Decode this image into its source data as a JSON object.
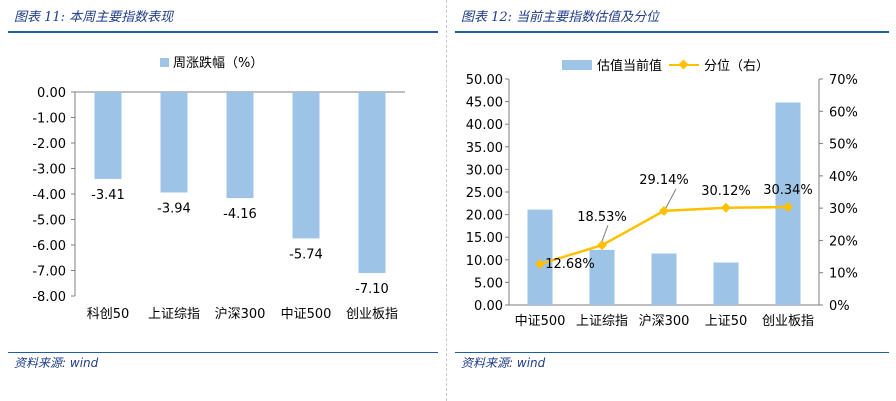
{
  "left": {
    "title": "图表 11:  本周主要指数表现",
    "source_label": "资料来源:",
    "source_value": "wind",
    "chart_data": {
      "type": "bar",
      "series": [
        {
          "name": "周涨跌幅（%）",
          "color": "#9dc3e6",
          "values": [
            -3.41,
            -3.94,
            -4.16,
            -5.74,
            -7.1
          ]
        }
      ],
      "categories": [
        "科创50",
        "上证综指",
        "沪深300",
        "中证500",
        "创业板指"
      ],
      "data_labels": [
        "-3.41",
        "-3.94",
        "-4.16",
        "-5.74",
        "-7.10"
      ],
      "ylim": [
        -8,
        0
      ],
      "yticks": [
        "0.00",
        "-1.00",
        "-2.00",
        "-3.00",
        "-4.00",
        "-5.00",
        "-6.00",
        "-7.00",
        "-8.00"
      ],
      "grid": false,
      "legend": "top"
    }
  },
  "right": {
    "title": "图表 12:  当前主要指数估值及分位",
    "source_label": "资料来源:",
    "source_value": "wind",
    "chart_data": {
      "type": "bar+line",
      "categories": [
        "中证500",
        "上证综指",
        "沪深300",
        "上证50",
        "创业板指"
      ],
      "series": [
        {
          "name": "估值当前值",
          "type": "bar",
          "axis": "left",
          "color": "#9dc3e6",
          "values": [
            21.1,
            12.2,
            11.4,
            9.4,
            44.8
          ]
        },
        {
          "name": "分位（右）",
          "type": "line",
          "axis": "right",
          "color": "#ffc000",
          "values": [
            12.68,
            18.53,
            29.14,
            30.12,
            30.34
          ],
          "labels": [
            "12.68%",
            "18.53%",
            "29.14%",
            "30.12%",
            "30.34%"
          ]
        }
      ],
      "ylim_left": [
        0,
        50
      ],
      "yticks_left": [
        "0.00",
        "5.00",
        "10.00",
        "15.00",
        "20.00",
        "25.00",
        "30.00",
        "35.00",
        "40.00",
        "45.00",
        "50.00"
      ],
      "ylim_right": [
        0,
        70
      ],
      "yticks_right": [
        "0%",
        "10%",
        "20%",
        "30%",
        "40%",
        "50%",
        "60%",
        "70%"
      ],
      "grid": false,
      "legend": "top"
    }
  }
}
